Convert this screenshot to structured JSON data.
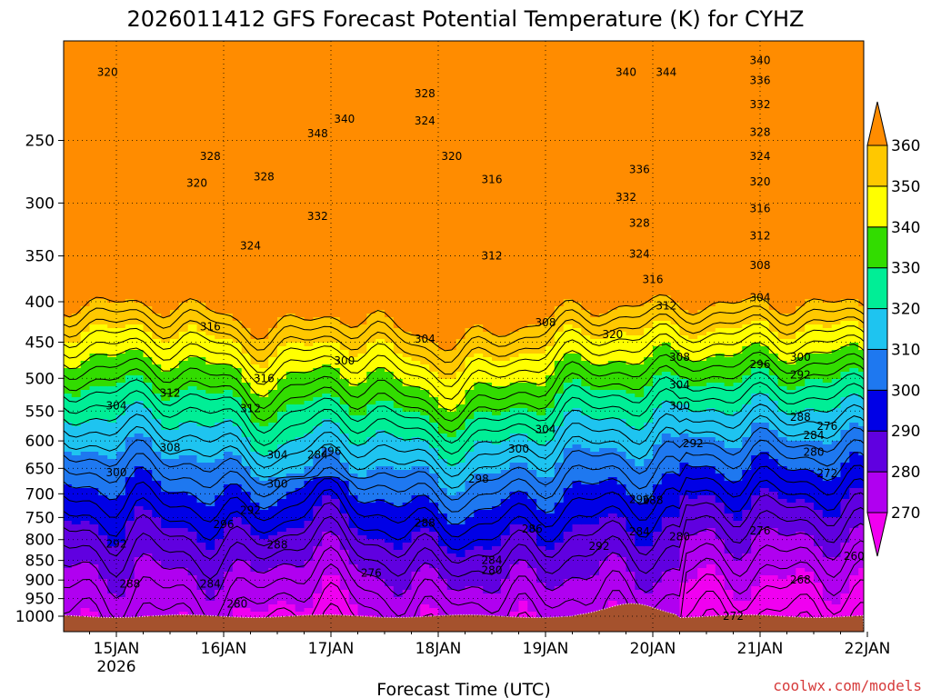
{
  "chart_data": {
    "type": "contour-time-height",
    "title": "2026011412 GFS Forecast Potential Temperature (K) for CYHZ",
    "xlabel": "Forecast Time (UTC)",
    "ylabel": "",
    "x_tick_labels": [
      "15JAN",
      "16JAN",
      "17JAN",
      "18JAN",
      "19JAN",
      "20JAN",
      "21JAN",
      "22JAN"
    ],
    "x_year_label": "2026",
    "y_axis_type": "log-pressure",
    "y_ticks": [
      250,
      300,
      350,
      400,
      450,
      500,
      550,
      600,
      650,
      700,
      750,
      800,
      850,
      900,
      950,
      1000
    ],
    "ylim": [
      200,
      1050
    ],
    "grid": true,
    "colorbar": {
      "levels": [
        270,
        280,
        290,
        300,
        310,
        320,
        330,
        340,
        350,
        360
      ],
      "colors": [
        "#f000f0",
        "#b000f0",
        "#6000e0",
        "#0000e6",
        "#1e78f0",
        "#1ec4f0",
        "#00ee96",
        "#32dc00",
        "#ffff00",
        "#ffc800",
        "#ff8c00"
      ],
      "extend": "both"
    },
    "terrain_color": "#a5522d",
    "contour_interval_k": 4,
    "contour_labels": [
      {
        "time": "14JAN22",
        "p": 205,
        "v": "320"
      },
      {
        "time": "15JAN21",
        "p": 262,
        "v": "328"
      },
      {
        "time": "15JAN18",
        "p": 283,
        "v": "320"
      },
      {
        "time": "16JAN09",
        "p": 278,
        "v": "328"
      },
      {
        "time": "16JAN06",
        "p": 340,
        "v": "324"
      },
      {
        "time": "16JAN21",
        "p": 245,
        "v": "348"
      },
      {
        "time": "17JAN03",
        "p": 235,
        "v": "340"
      },
      {
        "time": "16JAN21",
        "p": 312,
        "v": "332"
      },
      {
        "time": "17JAN21",
        "p": 218,
        "v": "328"
      },
      {
        "time": "17JAN21",
        "p": 236,
        "v": "324"
      },
      {
        "time": "18JAN03",
        "p": 262,
        "v": "320"
      },
      {
        "time": "18JAN12",
        "p": 280,
        "v": "316"
      },
      {
        "time": "18JAN12",
        "p": 350,
        "v": "312"
      },
      {
        "time": "19JAN00",
        "p": 425,
        "v": "308"
      },
      {
        "time": "17JAN21",
        "p": 446,
        "v": "304"
      },
      {
        "time": "17JAN03",
        "p": 475,
        "v": "300"
      },
      {
        "time": "15JAN21",
        "p": 430,
        "v": "316"
      },
      {
        "time": "16JAN09",
        "p": 500,
        "v": "316"
      },
      {
        "time": "15JAN12",
        "p": 522,
        "v": "312"
      },
      {
        "time": "16JAN06",
        "p": 546,
        "v": "312"
      },
      {
        "time": "15JAN00",
        "p": 542,
        "v": "304"
      },
      {
        "time": "15JAN12",
        "p": 612,
        "v": "308"
      },
      {
        "time": "16JAN12",
        "p": 625,
        "v": "304"
      },
      {
        "time": "15JAN00",
        "p": 658,
        "v": "300"
      },
      {
        "time": "16JAN12",
        "p": 680,
        "v": "300"
      },
      {
        "time": "16JAN21",
        "p": 625,
        "v": "284"
      },
      {
        "time": "17JAN00",
        "p": 618,
        "v": "296"
      },
      {
        "time": "16JAN00",
        "p": 765,
        "v": "296"
      },
      {
        "time": "16JAN06",
        "p": 735,
        "v": "292"
      },
      {
        "time": "16JAN12",
        "p": 812,
        "v": "288"
      },
      {
        "time": "17JAN21",
        "p": 762,
        "v": "288"
      },
      {
        "time": "18JAN09",
        "p": 670,
        "v": "298"
      },
      {
        "time": "19JAN00",
        "p": 580,
        "v": "304"
      },
      {
        "time": "18JAN18",
        "p": 614,
        "v": "300"
      },
      {
        "time": "18JAN21",
        "p": 775,
        "v": "286"
      },
      {
        "time": "18JAN12",
        "p": 850,
        "v": "284"
      },
      {
        "time": "18JAN12",
        "p": 875,
        "v": "280"
      },
      {
        "time": "17JAN09",
        "p": 882,
        "v": "276"
      },
      {
        "time": "15JAN00",
        "p": 810,
        "v": "292"
      },
      {
        "time": "15JAN03",
        "p": 910,
        "v": "288"
      },
      {
        "time": "15JAN21",
        "p": 910,
        "v": "284"
      },
      {
        "time": "16JAN03",
        "p": 965,
        "v": "280"
      },
      {
        "time": "19JAN12",
        "p": 815,
        "v": "292"
      },
      {
        "time": "19JAN21",
        "p": 712,
        "v": "296"
      },
      {
        "time": "20JAN00",
        "p": 713,
        "v": "288"
      },
      {
        "time": "19JAN21",
        "p": 782,
        "v": "284"
      },
      {
        "time": "20JAN06",
        "p": 793,
        "v": "280"
      },
      {
        "time": "20JAN09",
        "p": 605,
        "v": "292"
      },
      {
        "time": "20JAN06",
        "p": 542,
        "v": "300"
      },
      {
        "time": "20JAN06",
        "p": 510,
        "v": "304"
      },
      {
        "time": "20JAN06",
        "p": 470,
        "v": "308"
      },
      {
        "time": "19JAN15",
        "p": 440,
        "v": "320"
      },
      {
        "time": "20JAN03",
        "p": 405,
        "v": "312"
      },
      {
        "time": "20JAN00",
        "p": 375,
        "v": "316"
      },
      {
        "time": "19JAN21",
        "p": 348,
        "v": "324"
      },
      {
        "time": "19JAN21",
        "p": 318,
        "v": "328"
      },
      {
        "time": "19JAN18",
        "p": 295,
        "v": "332"
      },
      {
        "time": "19JAN21",
        "p": 272,
        "v": "336"
      },
      {
        "time": "19JAN18",
        "p": 205,
        "v": "340"
      },
      {
        "time": "20JAN03",
        "p": 205,
        "v": "344"
      },
      {
        "time": "21JAN00",
        "p": 780,
        "v": "276"
      },
      {
        "time": "21JAN09",
        "p": 470,
        "v": "300"
      },
      {
        "time": "21JAN00",
        "p": 480,
        "v": "296"
      },
      {
        "time": "21JAN09",
        "p": 495,
        "v": "292"
      },
      {
        "time": "21JAN09",
        "p": 560,
        "v": "288"
      },
      {
        "time": "21JAN12",
        "p": 620,
        "v": "280"
      },
      {
        "time": "21JAN12",
        "p": 590,
        "v": "284"
      },
      {
        "time": "21JAN15",
        "p": 575,
        "v": "276"
      },
      {
        "time": "21JAN15",
        "p": 660,
        "v": "272"
      },
      {
        "time": "21JAN09",
        "p": 900,
        "v": "268"
      },
      {
        "time": "21JAN21",
        "p": 840,
        "v": "260"
      },
      {
        "time": "20JAN18",
        "p": 1000,
        "v": "272"
      },
      {
        "time": "21JAN00",
        "p": 198,
        "v": "340"
      },
      {
        "time": "21JAN00",
        "p": 210,
        "v": "336"
      },
      {
        "time": "21JAN00",
        "p": 225,
        "v": "332"
      },
      {
        "time": "21JAN00",
        "p": 244,
        "v": "328"
      },
      {
        "time": "21JAN00",
        "p": 262,
        "v": "324"
      },
      {
        "time": "21JAN00",
        "p": 282,
        "v": "320"
      },
      {
        "time": "21JAN00",
        "p": 305,
        "v": "316"
      },
      {
        "time": "21JAN00",
        "p": 330,
        "v": "312"
      },
      {
        "time": "21JAN00",
        "p": 360,
        "v": "308"
      },
      {
        "time": "21JAN00",
        "p": 395,
        "v": "304"
      }
    ]
  },
  "credit": "coolwx.com/models"
}
